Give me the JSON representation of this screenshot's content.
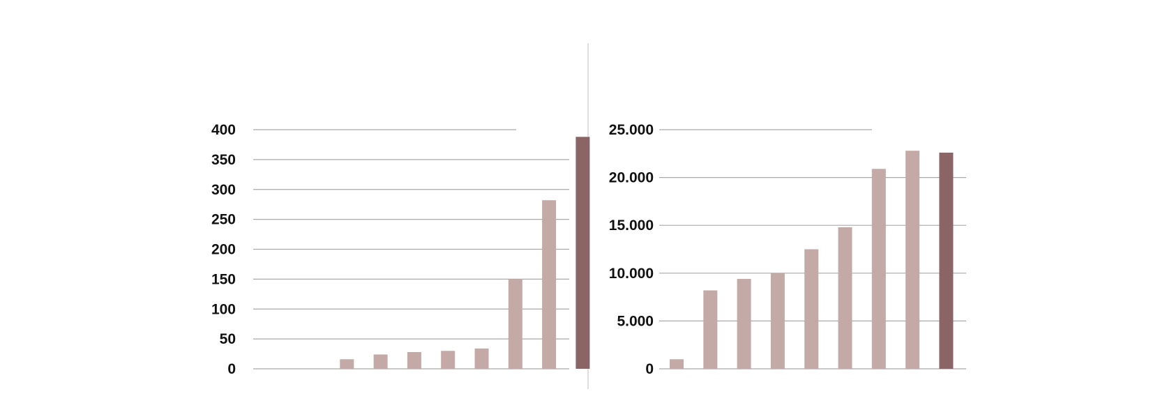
{
  "colors": {
    "bar": "#c4aaa6",
    "highlight_bar": "#8b6566",
    "gridline": "#a9a9a9",
    "divider": "#d3d3d3",
    "text": "#111111"
  },
  "chart_data": [
    {
      "type": "bar",
      "title": "",
      "xlabel": "",
      "ylabel": "",
      "ylim": [
        0,
        400
      ],
      "y_ticks": [
        "0",
        "50",
        "100",
        "150",
        "200",
        "250",
        "300",
        "350",
        "400"
      ],
      "grid": true,
      "legend": "none",
      "values": [
        0,
        16,
        24,
        28,
        30,
        34,
        150,
        282,
        388
      ],
      "highlight_index": 8
    },
    {
      "type": "bar",
      "title": "",
      "xlabel": "",
      "ylabel": "",
      "ylim": [
        0,
        25000
      ],
      "y_ticks": [
        "0",
        "5.000",
        "10.000",
        "15.000",
        "20.000",
        "25.000"
      ],
      "grid": true,
      "legend": "none",
      "values": [
        1000,
        8200,
        9400,
        10000,
        12500,
        14800,
        20900,
        22800,
        22600
      ],
      "highlight_index": 8
    }
  ]
}
